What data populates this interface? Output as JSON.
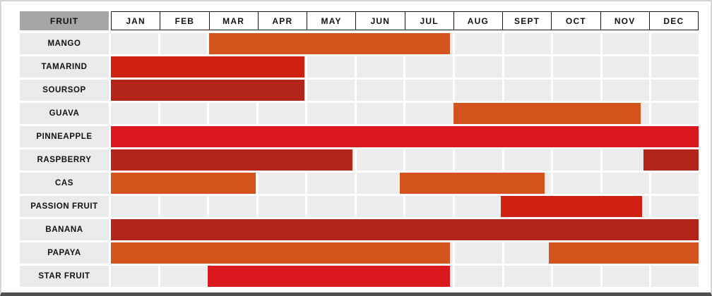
{
  "header": {
    "fruit_label": "FRUIT"
  },
  "colors": {
    "orange": "#d4521c",
    "red": "#d02112",
    "bright_red": "#da1a1e",
    "dark_red": "#b3241a",
    "cell_bg": "#ececec",
    "label_bg": "#eaeaea",
    "fruit_header_bg": "#a6a6a6",
    "header_border": "#161616"
  },
  "chart_data": {
    "type": "heatmap",
    "subtype": "gantt-style fruit seasonality calendar",
    "title": "",
    "months": [
      "JAN",
      "FEB",
      "MAR",
      "APR",
      "MAY",
      "JUN",
      "JUL",
      "AUG",
      "SEPT",
      "OCT",
      "NOV",
      "DEC"
    ],
    "axis_note": "bar start/end are in month units where 0 = start of JAN and 12 = end of DEC",
    "rows": [
      {
        "fruit": "MANGO",
        "bars": [
          {
            "start": 2,
            "end": 6.93,
            "color": "orange",
            "season": "MAR-JUL"
          }
        ]
      },
      {
        "fruit": "TAMARIND",
        "bars": [
          {
            "start": 0,
            "end": 3.95,
            "color": "red",
            "season": "JAN-APR"
          }
        ]
      },
      {
        "fruit": "SOURSOP",
        "bars": [
          {
            "start": 0,
            "end": 3.95,
            "color": "dark_red",
            "season": "JAN-APR"
          }
        ]
      },
      {
        "fruit": "GUAVA",
        "bars": [
          {
            "start": 7,
            "end": 10.82,
            "color": "orange",
            "season": "AUG-NOV"
          }
        ]
      },
      {
        "fruit": "PINNEAPPLE",
        "bars": [
          {
            "start": 0,
            "end": 12,
            "color": "bright_red",
            "season": "JAN-DEC"
          }
        ]
      },
      {
        "fruit": "RASPBERRY",
        "bars": [
          {
            "start": 0,
            "end": 4.93,
            "color": "dark_red",
            "season": "JAN-MAY"
          },
          {
            "start": 10.88,
            "end": 12,
            "color": "dark_red",
            "season": "DEC"
          }
        ]
      },
      {
        "fruit": "CAS",
        "bars": [
          {
            "start": 0,
            "end": 2.95,
            "color": "orange",
            "season": "JAN-MAR"
          },
          {
            "start": 5.9,
            "end": 8.85,
            "color": "orange",
            "season": "JUL-mid SEPT"
          }
        ]
      },
      {
        "fruit": "PASSION FRUIT",
        "bars": [
          {
            "start": 7.96,
            "end": 10.85,
            "color": "red",
            "season": "SEPT-NOV"
          }
        ]
      },
      {
        "fruit": "BANANA",
        "bars": [
          {
            "start": 0,
            "end": 12,
            "color": "dark_red",
            "season": "JAN-DEC"
          }
        ]
      },
      {
        "fruit": "PAPAYA",
        "bars": [
          {
            "start": 0,
            "end": 6.93,
            "color": "orange",
            "season": "JAN-JUL"
          },
          {
            "start": 8.94,
            "end": 12,
            "color": "orange",
            "season": "OCT-DEC"
          }
        ]
      },
      {
        "fruit": "STAR FRUIT",
        "bars": [
          {
            "start": 1.97,
            "end": 6.93,
            "color": "bright_red",
            "season": "MAR-JUL"
          }
        ]
      }
    ]
  }
}
